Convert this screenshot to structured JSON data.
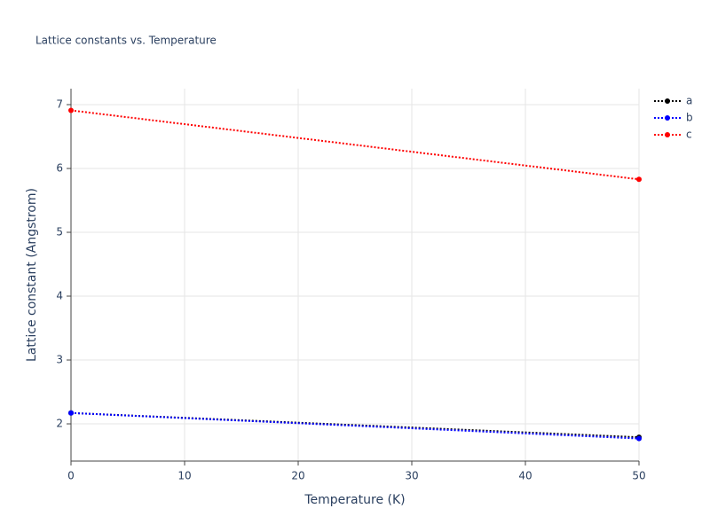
{
  "chart_data": {
    "type": "line",
    "title": "Lattice constants vs. Temperature",
    "x_label": "Temperature (K)",
    "y_label": "Lattice constant (Angstrom)",
    "x": [
      0,
      50
    ],
    "series": [
      {
        "name": "a",
        "color": "#000000",
        "values": [
          2.17,
          1.79
        ]
      },
      {
        "name": "b",
        "color": "#0000ff",
        "values": [
          2.17,
          1.77
        ]
      },
      {
        "name": "c",
        "color": "#ff0000",
        "values": [
          6.91,
          5.83
        ]
      }
    ],
    "xlim": [
      0,
      50
    ],
    "xticks": [
      0,
      10,
      20,
      30,
      40,
      50
    ],
    "ylim": [
      1.417,
      7.25
    ],
    "yticks": [
      2,
      3,
      4,
      5,
      6,
      7
    ],
    "grid": true,
    "legend": "top-right"
  }
}
